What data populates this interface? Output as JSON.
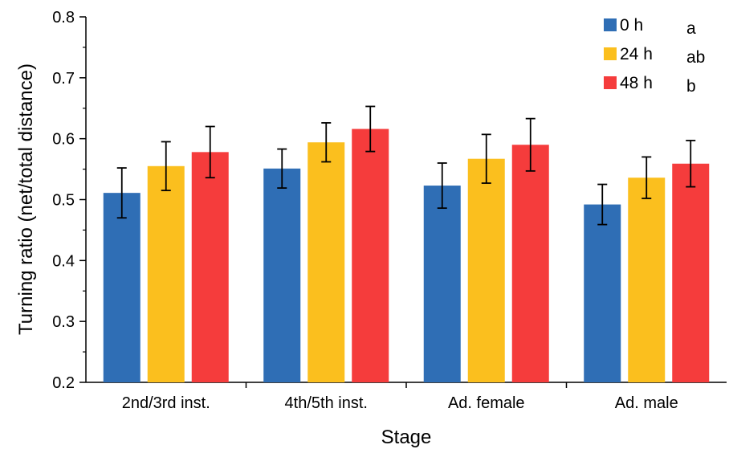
{
  "chart_data": {
    "type": "bar",
    "xlabel": "Stage",
    "ylabel": "Turning ratio (net/total distance)",
    "ylim": [
      0.2,
      0.8
    ],
    "yticks": [
      "0.2",
      "0.3",
      "0.4",
      "0.5",
      "0.6",
      "0.7",
      "0.8"
    ],
    "categories": [
      "2nd/3rd inst.",
      "4th/5th inst.",
      "Ad. female",
      "Ad. male"
    ],
    "series": [
      {
        "name": "0 h",
        "letter": "a",
        "color": "#2f6eb5",
        "values": [
          0.511,
          0.551,
          0.523,
          0.492
        ],
        "errors": [
          0.041,
          0.032,
          0.037,
          0.033
        ]
      },
      {
        "name": "24 h",
        "letter": "ab",
        "color": "#fbbf1e",
        "values": [
          0.555,
          0.594,
          0.567,
          0.536
        ],
        "errors": [
          0.04,
          0.032,
          0.04,
          0.034
        ]
      },
      {
        "name": "48 h",
        "letter": "b",
        "color": "#f53c3c",
        "values": [
          0.578,
          0.616,
          0.59,
          0.559
        ],
        "errors": [
          0.042,
          0.037,
          0.043,
          0.038
        ]
      }
    ],
    "legend_position": "top-right",
    "grid": false,
    "error_bars": true
  }
}
